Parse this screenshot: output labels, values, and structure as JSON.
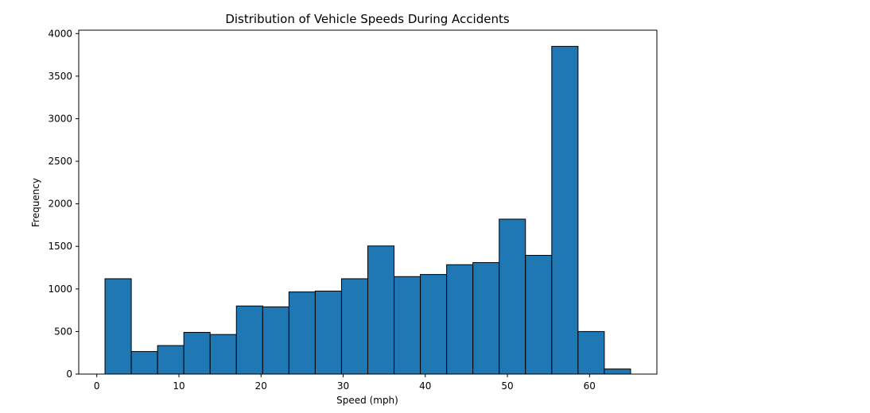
{
  "chart_data": {
    "type": "bar",
    "title": "Distribution of Vehicle Speeds During Accidents",
    "xlabel": "Speed (mph)",
    "ylabel": "Frequency",
    "xlim": [
      -2.2,
      68.2
    ],
    "ylim": [
      0,
      4040
    ],
    "grid": false,
    "bar_color": "#1f77b4",
    "edge_color": "#000000",
    "bins": [
      {
        "start": 1.0,
        "end": 4.2,
        "value": 1120
      },
      {
        "start": 4.2,
        "end": 7.4,
        "value": 265
      },
      {
        "start": 7.4,
        "end": 10.6,
        "value": 335
      },
      {
        "start": 10.6,
        "end": 13.8,
        "value": 490
      },
      {
        "start": 13.8,
        "end": 17.0,
        "value": 465
      },
      {
        "start": 17.0,
        "end": 20.2,
        "value": 800
      },
      {
        "start": 20.2,
        "end": 23.4,
        "value": 790
      },
      {
        "start": 23.4,
        "end": 26.6,
        "value": 965
      },
      {
        "start": 26.6,
        "end": 29.8,
        "value": 975
      },
      {
        "start": 29.8,
        "end": 33.0,
        "value": 1120
      },
      {
        "start": 33.0,
        "end": 36.2,
        "value": 1505
      },
      {
        "start": 36.2,
        "end": 39.4,
        "value": 1145
      },
      {
        "start": 39.4,
        "end": 42.6,
        "value": 1170
      },
      {
        "start": 42.6,
        "end": 45.8,
        "value": 1285
      },
      {
        "start": 45.8,
        "end": 49.0,
        "value": 1310
      },
      {
        "start": 49.0,
        "end": 52.2,
        "value": 1820
      },
      {
        "start": 52.2,
        "end": 55.4,
        "value": 1395
      },
      {
        "start": 55.4,
        "end": 58.6,
        "value": 3850
      },
      {
        "start": 58.6,
        "end": 61.8,
        "value": 500
      },
      {
        "start": 61.8,
        "end": 65.0,
        "value": 60
      }
    ],
    "x_ticks": [
      0,
      10,
      20,
      30,
      40,
      50,
      60
    ],
    "x_tick_labels": [
      "0",
      "10",
      "20",
      "30",
      "40",
      "50",
      "60"
    ],
    "y_ticks": [
      0,
      500,
      1000,
      1500,
      2000,
      2500,
      3000,
      3500,
      4000
    ],
    "y_tick_labels": [
      "0",
      "500",
      "1000",
      "1500",
      "2000",
      "2500",
      "3000",
      "3500",
      "4000"
    ]
  }
}
